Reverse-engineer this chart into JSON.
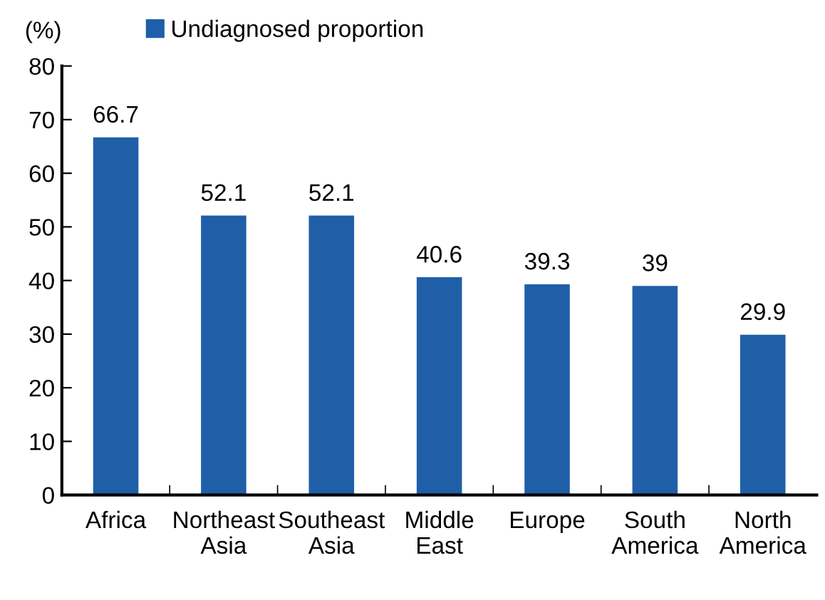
{
  "chart_data": {
    "type": "bar",
    "ylabel": "(%)",
    "categories": [
      "Africa",
      "Northeast\nAsia",
      "Southeast\nAsia",
      "Middle\nEast",
      "Europe",
      "South\nAmerica",
      "North\nAmerica"
    ],
    "series": [
      {
        "name": "Undiagnosed proportion",
        "color": "#1f5fa8",
        "values": [
          66.7,
          52.1,
          52.1,
          40.6,
          39.3,
          39,
          29.9
        ]
      }
    ],
    "value_labels": [
      "66.7",
      "52.1",
      "52.1",
      "40.6",
      "39.3",
      "39",
      "29.9"
    ],
    "ylim": [
      0,
      80
    ],
    "yticks": [
      0,
      10,
      20,
      30,
      40,
      50,
      60,
      70,
      80
    ],
    "grid": false,
    "legend": "top left"
  }
}
